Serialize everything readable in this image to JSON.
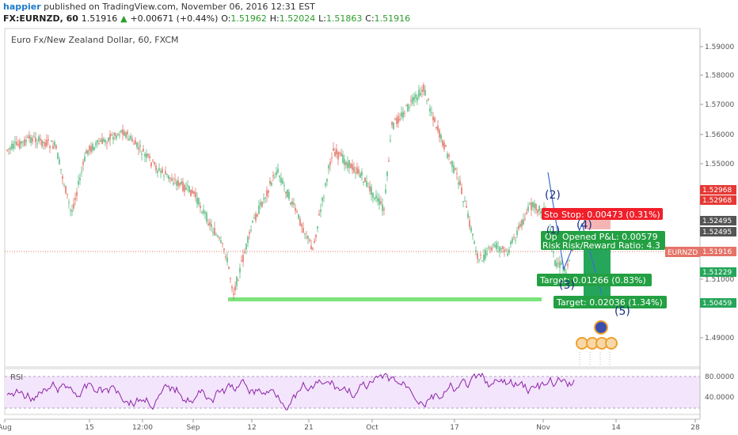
{
  "header": {
    "user": "happier",
    "published": "published on TradingView.com, November 06, 2016 12:31 EST"
  },
  "ticker": {
    "symbol": "FX:EURNZD, 60",
    "last": "1.51916",
    "change": "+0.00671 (+0.44%)",
    "o_label": "O:",
    "o_value": "1.51962",
    "h_label": "H:",
    "h_value": "1.52024",
    "l_label": "L:",
    "l_value": "1.51863",
    "c_label": "C:",
    "c_value": "1.51916"
  },
  "chart_title": "Euro Fx/New Zealand Dollar, 60, FXCM",
  "price_axis": {
    "ticks": [
      "1.59000",
      "1.58000",
      "1.57000",
      "1.56000",
      "1.55000",
      "1.51000",
      "1.49000"
    ],
    "badges": [
      {
        "text": "1.52968",
        "color": "#e53935"
      },
      {
        "text": "1.52968",
        "color": "#e53935"
      },
      {
        "text": "1.52495",
        "color": "#555555"
      },
      {
        "text": "1.52495",
        "color": "#555555"
      },
      {
        "text": "1.51916",
        "color": "#e57368"
      },
      {
        "text": "1.51229",
        "color": "#26a65b"
      },
      {
        "text": "1.50459",
        "color": "#26a65b"
      }
    ],
    "symbol_tag": "EURNZD"
  },
  "time_axis": {
    "labels": [
      "Aug",
      "15",
      "12:00",
      "Sep",
      "12",
      "21",
      "Oct",
      "17",
      "Nov",
      "14",
      "28"
    ]
  },
  "annotations": {
    "stop": "Stop: 0.00473 (0.31%)",
    "opened_pl": "Opened P&L: 0.00579",
    "risk_reward": "Risk/Reward Ratio: 4.3",
    "open_prefix": "Op",
    "risk_prefix": "Risk",
    "target1": "Target: 0.01266 (0.83%)",
    "target2": "Target: 0.02036 (1.34%)",
    "wave_labels": [
      "(2)",
      "(4)",
      "(1)",
      "(3)",
      "(5)"
    ]
  },
  "rsi": {
    "label": "RSI",
    "ticks": [
      "80.0000",
      "40.0000"
    ]
  },
  "colors": {
    "up": "#26a65b",
    "down": "#d84b3a",
    "rsi": "#8e24aa",
    "rsi_band": "#f3e5fb",
    "support_line": "#7be37b",
    "current_price": "#e57368"
  }
}
